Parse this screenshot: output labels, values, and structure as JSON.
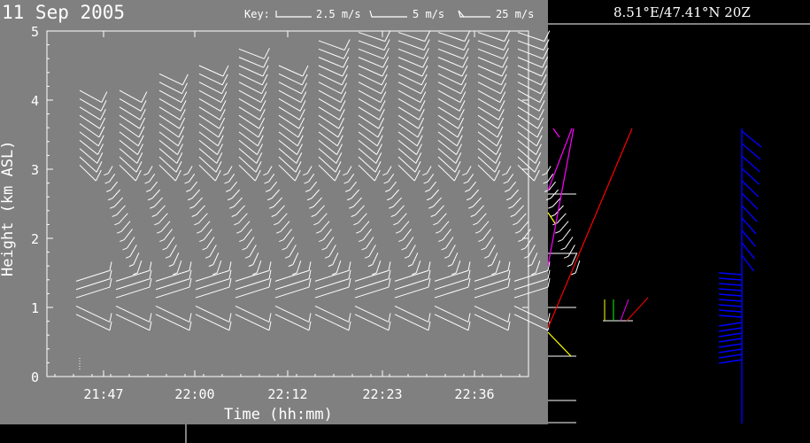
{
  "title": "11 Sep 2005",
  "key": {
    "label": "Key:",
    "items": [
      "2.5 m/s",
      "5 m/s",
      "25 m/s"
    ]
  },
  "location_label": "8.51°E/47.41°N  20Z",
  "colors": {
    "panel_bg": "#808080",
    "page_bg": "#000000",
    "barb": "#ffffff",
    "profile_barbs": "#0000ff",
    "red_line": "#ff0000",
    "magenta_line": "#ff00ff",
    "yellow_line": "#ffff00",
    "green_line": "#00ff00"
  },
  "chart_data": {
    "type": "wind-barb time-height",
    "title": "11 Sep 2005",
    "xlabel": "Time (hh:mm)",
    "ylabel": "Height (km ASL)",
    "x_ticks": [
      "21:47",
      "22:00",
      "22:12",
      "22:23",
      "22:36"
    ],
    "y_ticks": [
      "0",
      "1",
      "2",
      "3",
      "4",
      "5"
    ],
    "ylim": [
      0,
      5
    ],
    "profile_times": [
      "21:47",
      "21:52",
      "21:57",
      "22:02",
      "22:07",
      "22:12",
      "22:17",
      "22:22",
      "22:27",
      "22:32",
      "22:37",
      "22:42"
    ],
    "profile_top_km": [
      4.2,
      4.2,
      4.4,
      4.55,
      4.75,
      4.6,
      4.9,
      5.0,
      5.0,
      5.0,
      5.0,
      5.0
    ],
    "notes": "Low-level jet near 1.0-1.4 km, weak winds 1.5-3 km, westerly winds aloft"
  }
}
